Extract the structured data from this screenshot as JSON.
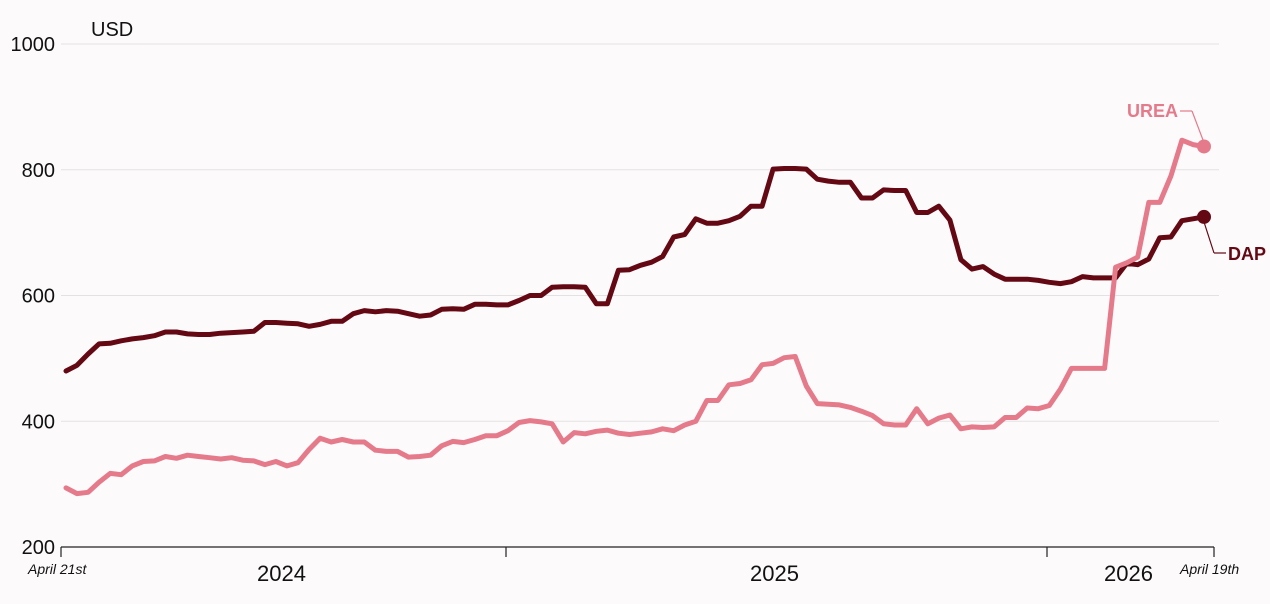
{
  "chart_data": {
    "type": "line",
    "ylabel": "USD",
    "ylim": [
      200,
      1000
    ],
    "yticks": [
      200,
      400,
      600,
      800,
      1000
    ],
    "grid": true,
    "x_start_label": "April 21st",
    "x_end_label": "April 19th",
    "x_year_labels": [
      "2024",
      "2025",
      "2026"
    ],
    "series": [
      {
        "name": "DAP",
        "color": "#640814",
        "values": [
          480,
          489,
          507,
          523,
          524,
          528,
          531,
          533,
          536,
          542,
          542,
          539,
          538,
          538,
          540,
          541,
          542,
          543,
          557,
          557,
          556,
          555,
          551,
          554,
          559,
          559,
          571,
          576,
          574,
          576,
          575,
          571,
          567,
          569,
          578,
          579,
          578,
          586,
          586,
          585,
          585,
          592,
          600,
          600,
          613,
          614,
          614,
          613,
          587,
          587,
          640,
          641,
          648,
          653,
          662,
          693,
          697,
          722,
          715,
          715,
          719,
          726,
          742,
          742,
          801,
          802,
          802,
          801,
          785,
          782,
          780,
          780,
          755,
          755,
          768,
          767,
          767,
          732,
          732,
          742,
          720,
          657,
          642,
          646,
          634,
          626,
          626,
          626,
          624,
          621,
          619,
          622,
          630,
          628,
          628,
          628,
          651,
          649,
          658,
          692,
          693,
          719,
          722,
          725
        ]
      },
      {
        "name": "UREA",
        "color": "#e57a8b",
        "values": [
          294,
          285,
          287,
          303,
          317,
          315,
          329,
          336,
          337,
          344,
          341,
          346,
          344,
          342,
          340,
          342,
          338,
          337,
          331,
          336,
          329,
          334,
          355,
          373,
          367,
          371,
          367,
          367,
          354,
          352,
          352,
          343,
          344,
          346,
          361,
          368,
          366,
          371,
          377,
          377,
          385,
          398,
          401,
          399,
          396,
          367,
          382,
          380,
          384,
          386,
          381,
          379,
          381,
          383,
          388,
          385,
          394,
          400,
          433,
          433,
          458,
          460,
          466,
          490,
          492,
          501,
          503,
          456,
          428,
          427,
          426,
          422,
          416,
          409,
          396,
          394,
          394,
          420,
          396,
          405,
          410,
          388,
          391,
          390,
          391,
          406,
          406,
          421,
          420,
          425,
          451,
          484,
          484,
          484,
          484,
          645,
          652,
          661,
          748,
          748,
          790,
          847,
          840,
          837
        ]
      }
    ]
  }
}
